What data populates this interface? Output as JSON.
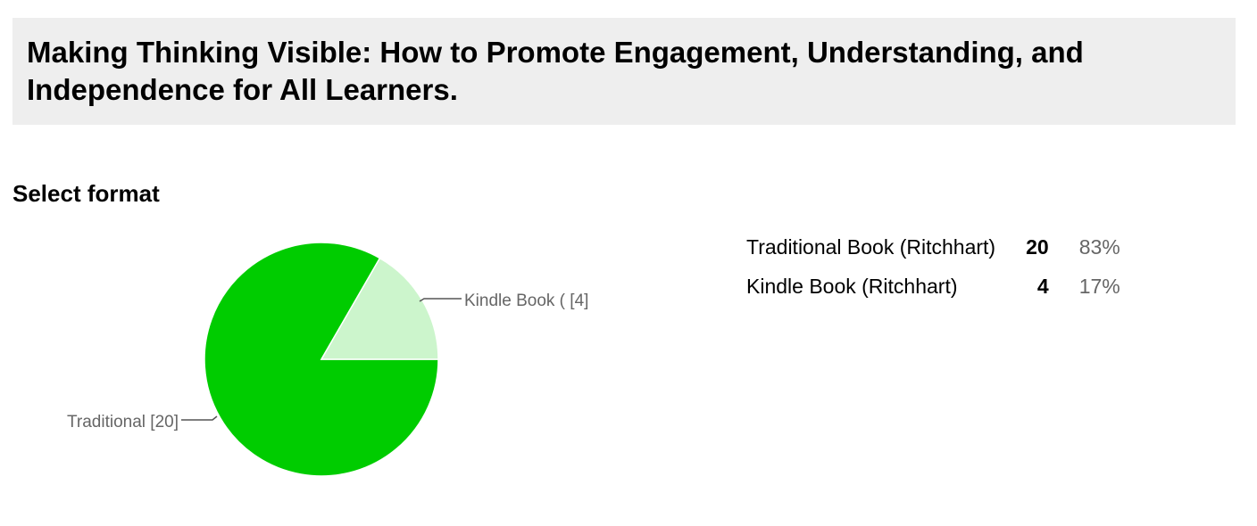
{
  "title": "Making Thinking Visible: How to Promote Engagement, Understanding, and Independence for All Learners.",
  "question": "Select format",
  "chart_data": {
    "type": "pie",
    "title": "",
    "slices": [
      {
        "label": "Traditional Book (Ritchhart)",
        "short_label": "Traditional  [20]",
        "value": 20,
        "percent": "83%",
        "color": "#00cc00"
      },
      {
        "label": "Kindle Book (Ritchhart)",
        "short_label": "Kindle Book ( [4]",
        "value": 4,
        "percent": "17%",
        "color": "#ccf5cc"
      }
    ],
    "legend": "right"
  }
}
